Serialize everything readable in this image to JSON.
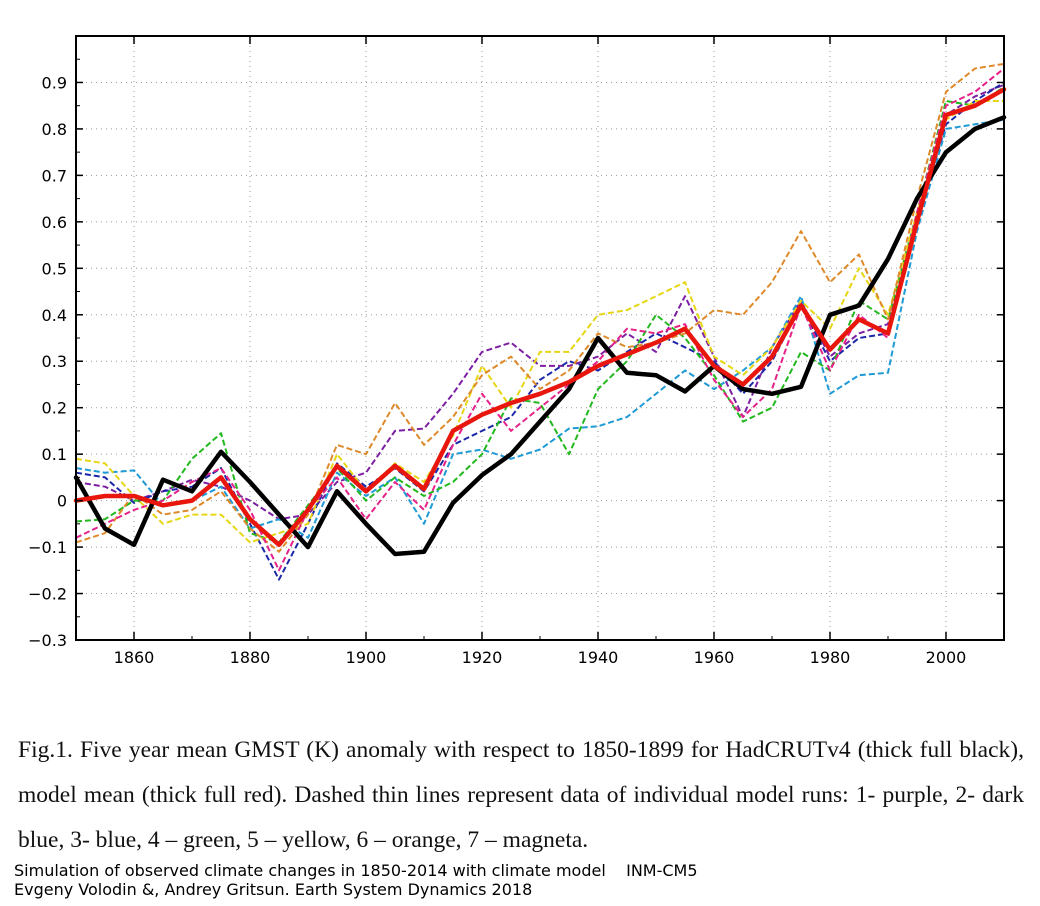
{
  "chart_data": {
    "type": "line",
    "title": "",
    "xlabel": "",
    "ylabel": "",
    "xlim": [
      1850,
      2010
    ],
    "ylim": [
      -0.3,
      1.0
    ],
    "x_ticks": [
      1860,
      1880,
      1900,
      1920,
      1940,
      1960,
      1980,
      2000
    ],
    "y_ticks": [
      -0.3,
      -0.2,
      -0.1,
      0,
      0.1,
      0.2,
      0.3,
      0.4,
      0.5,
      0.6,
      0.7,
      0.8,
      0.9
    ],
    "x_tick_labels": [
      "1860",
      "1880",
      "1900",
      "1920",
      "1940",
      "1960",
      "1980",
      "2000"
    ],
    "y_tick_labels": [
      "−0.3",
      "−0.2",
      "−0.1",
      "0",
      "0.1",
      "0.2",
      "0.3",
      "0.4",
      "0.5",
      "0.6",
      "0.7",
      "0.8",
      "0.9"
    ],
    "grid": true,
    "x": [
      1850,
      1855,
      1860,
      1865,
      1870,
      1875,
      1880,
      1885,
      1890,
      1895,
      1900,
      1905,
      1910,
      1915,
      1920,
      1925,
      1930,
      1935,
      1940,
      1945,
      1950,
      1955,
      1960,
      1965,
      1970,
      1975,
      1980,
      1985,
      1990,
      1995,
      2000,
      2005,
      2010
    ],
    "series": [
      {
        "name": "HadCRUTv4",
        "color": "#000000",
        "style": "solid-thick",
        "values": [
          0.05,
          -0.06,
          -0.095,
          0.045,
          0.02,
          0.105,
          0.04,
          -0.03,
          -0.1,
          0.02,
          -0.05,
          -0.115,
          -0.11,
          -0.005,
          0.055,
          0.1,
          0.17,
          0.24,
          0.35,
          0.275,
          0.27,
          0.235,
          0.29,
          0.24,
          0.23,
          0.245,
          0.4,
          0.42,
          0.52,
          0.65,
          0.75,
          0.8,
          0.825
        ]
      },
      {
        "name": "model mean",
        "color": "#e8160c",
        "style": "solid-thick",
        "values": [
          0.0,
          0.01,
          0.01,
          -0.01,
          0.0,
          0.05,
          -0.04,
          -0.095,
          -0.02,
          0.075,
          0.02,
          0.075,
          0.025,
          0.15,
          0.185,
          0.21,
          0.23,
          0.255,
          0.29,
          0.315,
          0.34,
          0.37,
          0.29,
          0.25,
          0.31,
          0.42,
          0.325,
          0.39,
          0.36,
          0.6,
          0.83,
          0.85,
          0.885
        ]
      },
      {
        "name": "1 - purple",
        "color": "#7d1fa3",
        "style": "dashed",
        "values": [
          0.04,
          0.03,
          0.0,
          0.02,
          0.045,
          0.03,
          0.0,
          -0.04,
          -0.03,
          0.04,
          0.06,
          0.15,
          0.155,
          0.23,
          0.32,
          0.34,
          0.29,
          0.29,
          0.31,
          0.36,
          0.32,
          0.44,
          0.31,
          0.18,
          0.33,
          0.43,
          0.31,
          0.36,
          0.38,
          0.6,
          0.83,
          0.87,
          0.895
        ]
      },
      {
        "name": "2 - dark blue",
        "color": "#1c27a8",
        "style": "dashed",
        "values": [
          0.06,
          0.05,
          -0.005,
          0.02,
          0.03,
          0.07,
          -0.05,
          -0.17,
          -0.05,
          0.08,
          0.03,
          0.07,
          0.02,
          0.12,
          0.15,
          0.18,
          0.26,
          0.3,
          0.28,
          0.32,
          0.36,
          0.33,
          0.3,
          0.23,
          0.3,
          0.42,
          0.3,
          0.35,
          0.36,
          0.6,
          0.81,
          0.86,
          0.9
        ]
      },
      {
        "name": "3 - blue",
        "color": "#1e9ad6",
        "style": "dashed",
        "values": [
          0.07,
          0.06,
          0.065,
          -0.01,
          0.0,
          0.03,
          -0.06,
          -0.04,
          -0.08,
          0.06,
          0.01,
          0.05,
          -0.05,
          0.1,
          0.11,
          0.09,
          0.11,
          0.155,
          0.16,
          0.18,
          0.23,
          0.28,
          0.24,
          0.28,
          0.33,
          0.44,
          0.23,
          0.27,
          0.275,
          0.58,
          0.8,
          0.81,
          0.82
        ]
      },
      {
        "name": "4 - green",
        "color": "#22b81e",
        "style": "dashed",
        "values": [
          -0.045,
          -0.04,
          0.0,
          0.0,
          0.09,
          0.145,
          -0.07,
          -0.09,
          -0.01,
          0.07,
          0.0,
          0.05,
          0.01,
          0.04,
          0.1,
          0.22,
          0.21,
          0.1,
          0.24,
          0.3,
          0.4,
          0.35,
          0.27,
          0.17,
          0.2,
          0.32,
          0.28,
          0.43,
          0.39,
          0.62,
          0.86,
          0.85,
          0.89
        ]
      },
      {
        "name": "5 - yellow",
        "color": "#e6d614",
        "style": "dashed",
        "values": [
          0.09,
          0.08,
          0.01,
          -0.05,
          -0.03,
          -0.03,
          -0.09,
          -0.07,
          -0.05,
          0.1,
          0.02,
          0.08,
          0.04,
          0.14,
          0.29,
          0.2,
          0.32,
          0.32,
          0.4,
          0.41,
          0.44,
          0.47,
          0.31,
          0.27,
          0.33,
          0.43,
          0.37,
          0.5,
          0.4,
          0.62,
          0.82,
          0.86,
          0.86
        ]
      },
      {
        "name": "6 - orange",
        "color": "#de8a2b",
        "style": "dashed",
        "values": [
          -0.09,
          -0.07,
          0.015,
          -0.03,
          -0.02,
          0.02,
          -0.06,
          -0.11,
          -0.03,
          0.12,
          0.1,
          0.21,
          0.12,
          0.18,
          0.27,
          0.31,
          0.24,
          0.28,
          0.36,
          0.33,
          0.34,
          0.36,
          0.41,
          0.4,
          0.47,
          0.58,
          0.47,
          0.53,
          0.39,
          0.65,
          0.88,
          0.93,
          0.94
        ]
      },
      {
        "name": "7 - magneta",
        "color": "#e62189",
        "style": "dashed",
        "values": [
          -0.08,
          -0.05,
          -0.02,
          0.0,
          0.04,
          0.07,
          -0.02,
          -0.15,
          -0.02,
          0.05,
          -0.04,
          0.04,
          -0.02,
          0.12,
          0.23,
          0.15,
          0.2,
          0.25,
          0.3,
          0.37,
          0.36,
          0.38,
          0.26,
          0.18,
          0.24,
          0.42,
          0.28,
          0.4,
          0.35,
          0.62,
          0.85,
          0.88,
          0.93
        ]
      }
    ]
  },
  "caption": "Fig.1. Five year mean GMST (K) anomaly with respect to 1850-1899 for HadCRUTv4 (thick full black), model mean (thick full red). Dashed thin lines represent data of individual model runs: 1- purple, 2- dark blue, 3- blue, 4 – green, 5 – yellow, 6 – orange, 7 – magneta.",
  "credit": {
    "line1": "Simulation of observed climate changes in 1850-2014 with climate model    INM-CM5",
    "line2": "Evgeny Volodin &, Andrey Gritsun. Earth System Dynamics 2018"
  }
}
